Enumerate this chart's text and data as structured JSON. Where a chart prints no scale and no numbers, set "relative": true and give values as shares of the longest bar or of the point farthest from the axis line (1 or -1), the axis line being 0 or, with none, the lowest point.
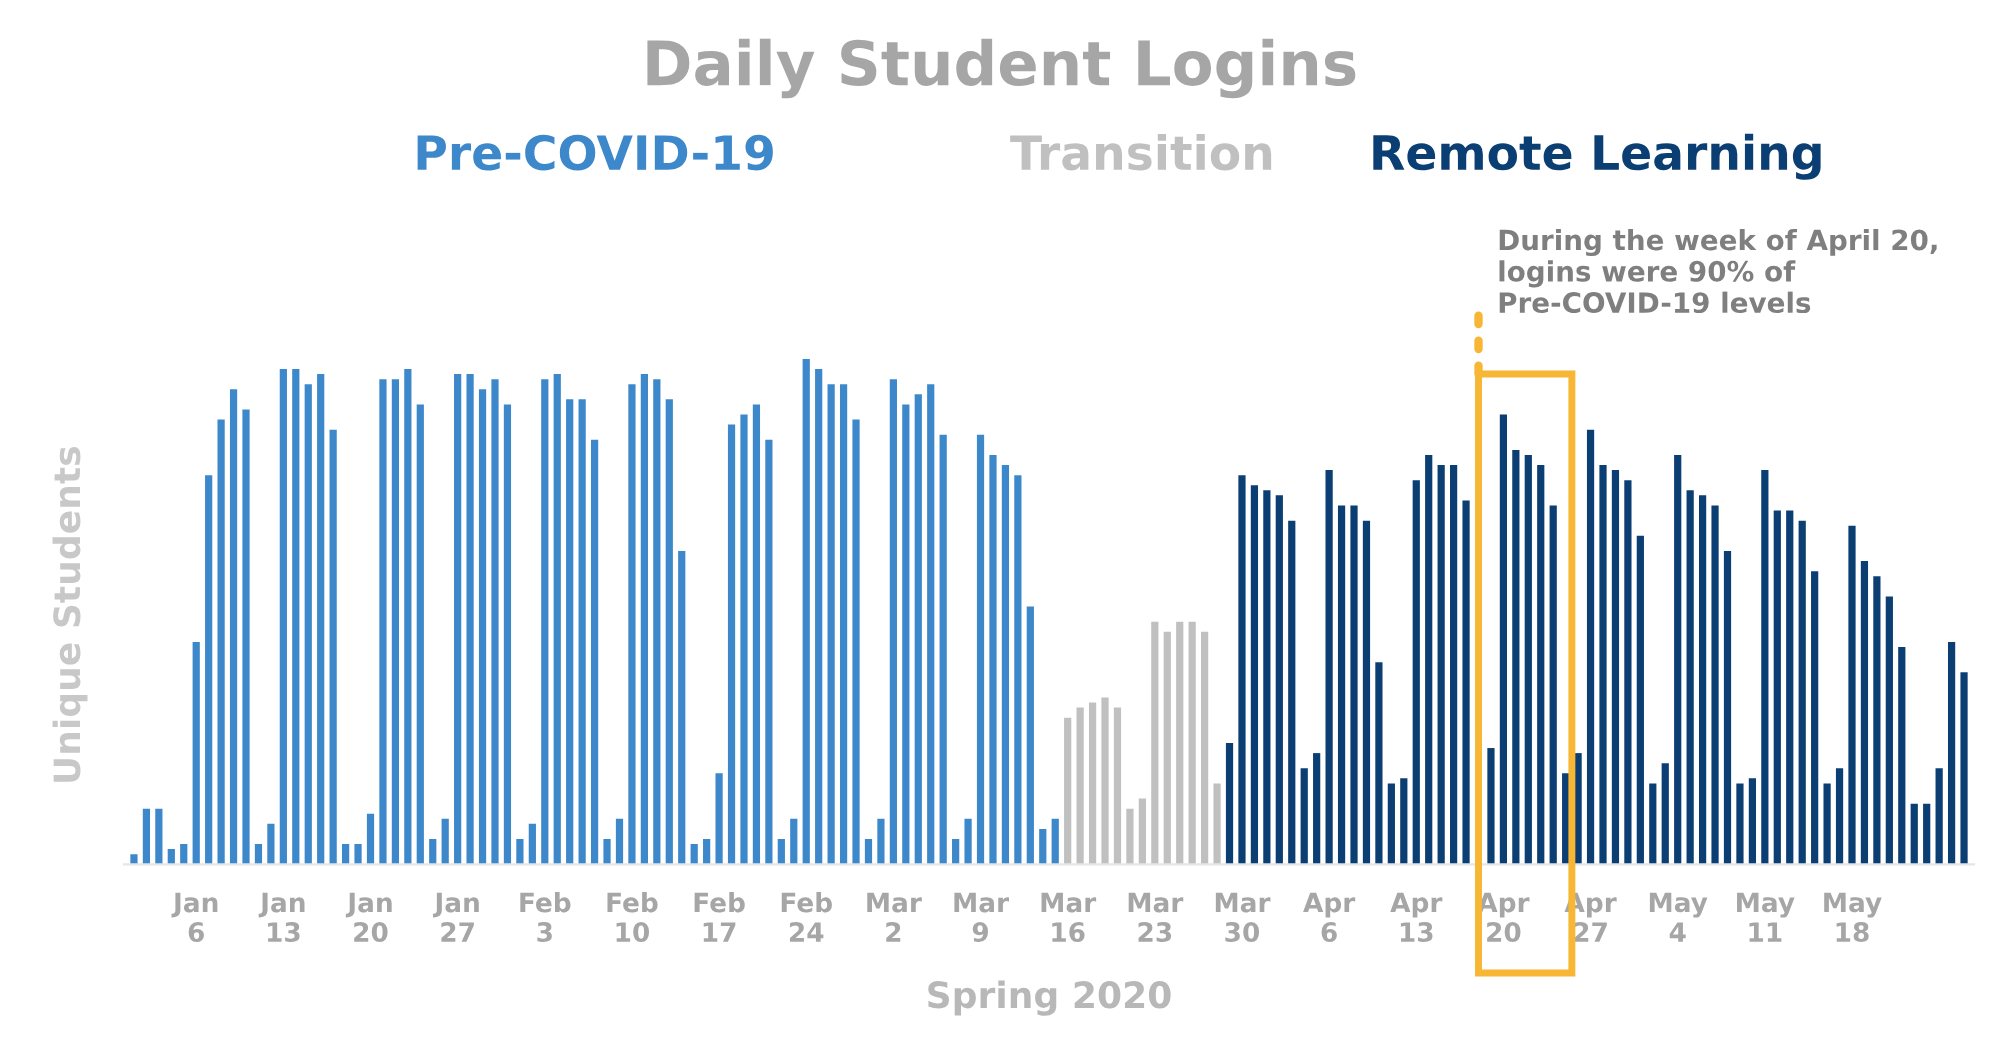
{
  "chart_data": {
    "type": "bar",
    "title": "Daily Student Logins",
    "xlabel": "Spring 2020",
    "ylabel": "Unique Students",
    "relative": true,
    "grid": false,
    "legend": false,
    "categories": [
      null,
      null,
      null,
      null,
      null,
      "Jan\n6",
      null,
      null,
      null,
      null,
      null,
      null,
      "Jan\n13",
      null,
      null,
      null,
      null,
      null,
      null,
      "Jan\n20",
      null,
      null,
      null,
      null,
      null,
      null,
      "Jan\n27",
      null,
      null,
      null,
      null,
      null,
      null,
      "Feb\n3",
      null,
      null,
      null,
      null,
      null,
      null,
      "Feb\n10",
      null,
      null,
      null,
      null,
      null,
      null,
      "Feb\n17",
      null,
      null,
      null,
      null,
      null,
      null,
      "Feb\n24",
      null,
      null,
      null,
      null,
      null,
      null,
      "Mar\n2",
      null,
      null,
      null,
      null,
      null,
      null,
      "Mar\n9",
      null,
      null,
      null,
      null,
      null,
      null,
      "Mar\n16",
      null,
      null,
      null,
      null,
      null,
      null,
      "Mar\n23",
      null,
      null,
      null,
      null,
      null,
      null,
      "Mar\n30",
      null,
      null,
      null,
      null,
      null,
      null,
      "Apr\n6",
      null,
      null,
      null,
      null,
      null,
      null,
      "Apr\n13",
      null,
      null,
      null,
      null,
      null,
      null,
      "Apr\n20",
      null,
      null,
      null,
      null,
      null,
      null,
      "Apr\n27",
      null,
      null,
      null,
      null,
      null,
      null,
      "May\n4",
      null,
      null,
      null,
      null,
      null,
      null,
      "May\n11",
      null,
      null,
      null,
      null,
      null,
      null,
      "May\n18",
      null,
      null,
      null,
      null,
      null,
      null,
      null,
      null,
      null
    ],
    "series": [
      {
        "name": "Pre-COVID-19",
        "color": "#3d88ca",
        "values": [
          0.02,
          0.11,
          0.11,
          0.03,
          0.04,
          0.44,
          0.77,
          0.88,
          0.94,
          0.9,
          0.04,
          0.08,
          0.98,
          0.98,
          0.95,
          0.97,
          0.86,
          0.04,
          0.04,
          0.1,
          0.96,
          0.96,
          0.98,
          0.91,
          0.05,
          0.09,
          0.97,
          0.97,
          0.94,
          0.96,
          0.91,
          0.05,
          0.08,
          0.96,
          0.97,
          0.92,
          0.92,
          0.84,
          0.05,
          0.09,
          0.95,
          0.97,
          0.96,
          0.92,
          0.62,
          0.04,
          0.05,
          0.18,
          0.87,
          0.89,
          0.91,
          0.84,
          0.05,
          0.09,
          1.0,
          0.98,
          0.95,
          0.95,
          0.88,
          0.05,
          0.09,
          0.96,
          0.91,
          0.93,
          0.95,
          0.85,
          0.05,
          0.09,
          0.85,
          0.81,
          0.79,
          0.77,
          0.51,
          0.07,
          0.09,
          null,
          null,
          null,
          null,
          null,
          null,
          null,
          null,
          null,
          null,
          null,
          null,
          null,
          null,
          null,
          null,
          null,
          null,
          null,
          null,
          null,
          null,
          null,
          null,
          null,
          null,
          null,
          null,
          null,
          null,
          null,
          null,
          null,
          null,
          null,
          null,
          null,
          null,
          null,
          null,
          null,
          null,
          null,
          null,
          null,
          null,
          null,
          null,
          null,
          null,
          null,
          null,
          null,
          null,
          null,
          null,
          null,
          null,
          null,
          null,
          null,
          null,
          null,
          null,
          null,
          null,
          null,
          null,
          null,
          null,
          null,
          null,
          null
        ]
      },
      {
        "name": "Transition",
        "color": "#c0c0c0",
        "values": [
          null,
          null,
          null,
          null,
          null,
          null,
          null,
          null,
          null,
          null,
          null,
          null,
          null,
          null,
          null,
          null,
          null,
          null,
          null,
          null,
          null,
          null,
          null,
          null,
          null,
          null,
          null,
          null,
          null,
          null,
          null,
          null,
          null,
          null,
          null,
          null,
          null,
          null,
          null,
          null,
          null,
          null,
          null,
          null,
          null,
          null,
          null,
          null,
          null,
          null,
          null,
          null,
          null,
          null,
          null,
          null,
          null,
          null,
          null,
          null,
          null,
          null,
          null,
          null,
          null,
          null,
          null,
          null,
          null,
          null,
          null,
          null,
          null,
          null,
          null,
          0.29,
          0.31,
          0.32,
          0.33,
          0.31,
          0.11,
          0.13,
          0.48,
          0.46,
          0.48,
          0.48,
          0.46,
          0.16,
          null,
          null,
          null,
          null,
          null,
          null,
          null,
          null,
          null,
          null,
          null,
          null,
          null,
          null,
          null,
          null,
          null,
          null,
          null,
          null,
          null,
          null,
          null,
          null,
          null,
          null,
          null,
          null,
          null,
          null,
          null,
          null,
          null,
          null,
          null,
          null,
          null,
          null,
          null,
          null,
          null,
          null,
          null,
          null,
          null,
          null,
          null,
          null,
          null,
          null,
          null,
          null,
          null,
          null,
          null,
          null,
          null,
          null,
          null,
          null
        ]
      },
      {
        "name": "Remote Learning",
        "color": "#0b3f73",
        "values": [
          null,
          null,
          null,
          null,
          null,
          null,
          null,
          null,
          null,
          null,
          null,
          null,
          null,
          null,
          null,
          null,
          null,
          null,
          null,
          null,
          null,
          null,
          null,
          null,
          null,
          null,
          null,
          null,
          null,
          null,
          null,
          null,
          null,
          null,
          null,
          null,
          null,
          null,
          null,
          null,
          null,
          null,
          null,
          null,
          null,
          null,
          null,
          null,
          null,
          null,
          null,
          null,
          null,
          null,
          null,
          null,
          null,
          null,
          null,
          null,
          null,
          null,
          null,
          null,
          null,
          null,
          null,
          null,
          null,
          null,
          null,
          null,
          null,
          null,
          null,
          null,
          null,
          null,
          null,
          null,
          null,
          null,
          null,
          null,
          null,
          null,
          null,
          null,
          0.24,
          0.77,
          0.75,
          0.74,
          0.73,
          0.68,
          0.19,
          0.22,
          0.78,
          0.71,
          0.71,
          0.68,
          0.4,
          0.16,
          0.17,
          0.76,
          0.81,
          0.79,
          0.79,
          0.72,
          null,
          0.23,
          0.89,
          0.82,
          0.81,
          0.79,
          0.71,
          0.18,
          0.22,
          0.86,
          0.79,
          0.78,
          0.76,
          0.65,
          0.16,
          0.2,
          0.81,
          0.74,
          0.73,
          0.71,
          0.62,
          0.16,
          0.17,
          0.78,
          0.7,
          0.7,
          0.68,
          0.58,
          0.16,
          0.19,
          0.67,
          0.6,
          0.57,
          0.53,
          0.43,
          0.12,
          0.12,
          0.19,
          0.44,
          0.38
        ]
      }
    ],
    "annotations": [
      "During the week of April 20, logins were 90% of Pre-COVID-19 levels"
    ]
  }
}
